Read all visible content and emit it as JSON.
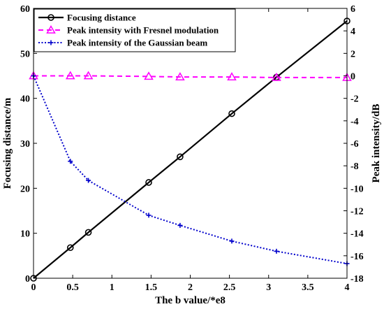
{
  "chart_data": {
    "type": "line",
    "xlabel": "The b value/*e8",
    "ylabel_left": "Focusing distance/m",
    "ylabel_right": "Peak intensity/dB",
    "xlim": [
      0,
      4
    ],
    "ylim_left": [
      0,
      60
    ],
    "ylim_right": [
      -18,
      6
    ],
    "x_ticks": [
      "0",
      "0.5",
      "1",
      "1.5",
      "2",
      "2.5",
      "3",
      "3.5",
      "4"
    ],
    "y_left_ticks": [
      "0",
      "10",
      "20",
      "30",
      "40",
      "50",
      "60"
    ],
    "y_right_ticks": [
      "-18",
      "-16",
      "-14",
      "-12",
      "-10",
      "-8",
      "-6",
      "-4",
      "-2",
      "0",
      "2",
      "4",
      "6"
    ],
    "grid": false,
    "legend_position": "top-left",
    "series": [
      {
        "name": "Focusing distance",
        "axis": "left",
        "color": "#000000",
        "line_style": "solid",
        "marker": "circle",
        "x": [
          0,
          0.47,
          0.7,
          1.47,
          1.87,
          2.53,
          3.1,
          4.0
        ],
        "y": [
          0,
          6.8,
          10.2,
          21.3,
          27.0,
          36.6,
          44.7,
          57.2
        ]
      },
      {
        "name": "Peak intensity with Fresnel modulation",
        "axis": "right",
        "color": "#ff00ff",
        "line_style": "dashed",
        "marker": "triangle",
        "x": [
          0,
          0.47,
          0.7,
          1.47,
          1.87,
          2.53,
          3.1,
          4.0
        ],
        "y": [
          0,
          0,
          0,
          -0.05,
          -0.1,
          -0.1,
          -0.15,
          -0.15
        ]
      },
      {
        "name": "Peak intensity of the Gaussian beam",
        "axis": "right",
        "color": "#0000cc",
        "line_style": "dotted",
        "marker": "plus",
        "x": [
          0,
          0.47,
          0.7,
          1.47,
          1.87,
          2.53,
          3.1,
          4.0
        ],
        "y": [
          0,
          -7.6,
          -9.3,
          -12.4,
          -13.3,
          -14.7,
          -15.6,
          -16.7
        ]
      }
    ]
  }
}
